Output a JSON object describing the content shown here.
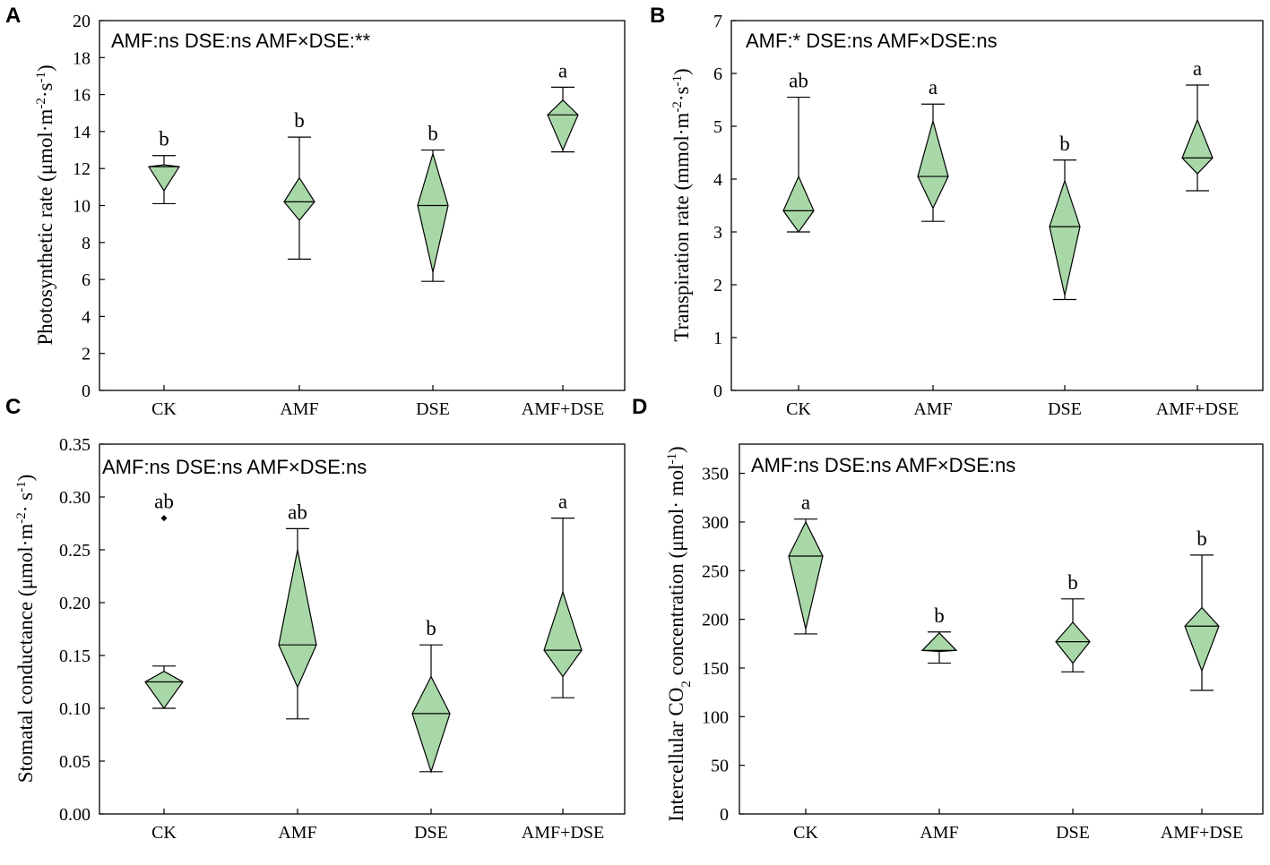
{
  "chart_data": [
    {
      "type": "box",
      "panel": "A",
      "ylabel_html": "Photosynthetic rate (μmol·m<tspan baseline-shift='super' font-size='15'>-2</tspan>·s<tspan baseline-shift='super' font-size='15'>-1</tspan>)",
      "ylim": [
        0,
        20
      ],
      "yticks": [
        0,
        2,
        4,
        6,
        8,
        10,
        12,
        14,
        16,
        18,
        20
      ],
      "stats_text": "AMF:ns  DSE:ns  AMF×DSE:**",
      "categories": [
        "CK",
        "AMF",
        "DSE",
        "AMF+DSE"
      ],
      "groups": [
        {
          "name": "CK",
          "min": 10.1,
          "q1": 10.8,
          "median": 12.1,
          "q3": 12.2,
          "max": 12.7,
          "sig": "b"
        },
        {
          "name": "AMF",
          "min": 7.1,
          "q1": 9.2,
          "median": 10.2,
          "q3": 11.5,
          "max": 13.7,
          "sig": "b"
        },
        {
          "name": "DSE",
          "min": 5.9,
          "q1": 6.4,
          "median": 10.0,
          "q3": 12.8,
          "max": 13.0,
          "sig": "b"
        },
        {
          "name": "AMF+DSE",
          "min": 12.9,
          "q1": 13.0,
          "median": 14.9,
          "q3": 15.7,
          "max": 16.4,
          "sig": "a"
        }
      ]
    },
    {
      "type": "box",
      "panel": "B",
      "ylabel_html": "Transpiration rate (mmol·m<tspan baseline-shift='super' font-size='15'>-2</tspan>·s<tspan baseline-shift='super' font-size='15'>-1</tspan>)",
      "ylim": [
        0,
        7
      ],
      "yticks": [
        0,
        1,
        2,
        3,
        4,
        5,
        6,
        7
      ],
      "stats_text": "AMF:*  DSE:ns  AMF×DSE:ns",
      "categories": [
        "CK",
        "AMF",
        "DSE",
        "AMF+DSE"
      ],
      "groups": [
        {
          "name": "CK",
          "min": 3.0,
          "q1": 3.0,
          "median": 3.4,
          "q3": 4.05,
          "max": 5.55,
          "sig": "ab"
        },
        {
          "name": "AMF",
          "min": 3.2,
          "q1": 3.45,
          "median": 4.05,
          "q3": 5.1,
          "max": 5.42,
          "sig": "a"
        },
        {
          "name": "DSE",
          "min": 1.72,
          "q1": 1.8,
          "median": 3.1,
          "q3": 3.97,
          "max": 4.36,
          "sig": "b"
        },
        {
          "name": "AMF+DSE",
          "min": 3.78,
          "q1": 4.1,
          "median": 4.4,
          "q3": 5.12,
          "max": 5.78,
          "sig": "a"
        }
      ]
    },
    {
      "type": "box",
      "panel": "C",
      "ylabel_html": "Stomatal conductance (μmol·m<tspan baseline-shift='super' font-size='15'>-2</tspan>· s<tspan baseline-shift='super' font-size='15'>-1</tspan>)",
      "ylim": [
        0,
        0.35
      ],
      "yticks": [
        0.0,
        0.05,
        0.1,
        0.15,
        0.2,
        0.25,
        0.3,
        0.35
      ],
      "stats_text": "AMF:ns  DSE:ns  AMF×DSE:ns",
      "categories": [
        "CK",
        "AMF",
        "DSE",
        "AMF+DSE"
      ],
      "groups": [
        {
          "name": "CK",
          "min": 0.1,
          "q1": 0.1,
          "median": 0.125,
          "q3": 0.135,
          "max": 0.14,
          "outlier": 0.28,
          "sig": "ab"
        },
        {
          "name": "AMF",
          "min": 0.09,
          "q1": 0.12,
          "median": 0.16,
          "q3": 0.25,
          "max": 0.27,
          "sig": "ab"
        },
        {
          "name": "DSE",
          "min": 0.04,
          "q1": 0.04,
          "median": 0.095,
          "q3": 0.13,
          "max": 0.16,
          "sig": "b"
        },
        {
          "name": "AMF+DSE",
          "min": 0.11,
          "q1": 0.13,
          "median": 0.155,
          "q3": 0.21,
          "max": 0.28,
          "sig": "a"
        }
      ]
    },
    {
      "type": "box",
      "panel": "D",
      "ylabel_html": "Intercellular CO<tspan baseline-shift='sub' font-size='15'>2</tspan> concentration (μmol· mol<tspan baseline-shift='super' font-size='15'>-1</tspan>)",
      "ylim": [
        0,
        380
      ],
      "yticks": [
        0,
        50,
        100,
        150,
        200,
        250,
        300,
        350
      ],
      "stats_text": "AMF:ns  DSE:ns  AMF×DSE:ns",
      "categories": [
        "CK",
        "AMF",
        "DSE",
        "AMF+DSE"
      ],
      "groups": [
        {
          "name": "CK",
          "min": 185,
          "q1": 190,
          "median": 265,
          "q3": 300,
          "max": 303,
          "sig": "a"
        },
        {
          "name": "AMF",
          "min": 155,
          "q1": 167,
          "median": 168,
          "q3": 186,
          "max": 187,
          "sig": "b"
        },
        {
          "name": "DSE",
          "min": 146,
          "q1": 155,
          "median": 177,
          "q3": 197,
          "max": 221,
          "sig": "b"
        },
        {
          "name": "AMF+DSE",
          "min": 127,
          "q1": 147,
          "median": 193,
          "q3": 212,
          "max": 266,
          "sig": "b"
        }
      ]
    }
  ],
  "colors": {
    "fill": "#a8d8a8",
    "stroke": "#000000"
  }
}
